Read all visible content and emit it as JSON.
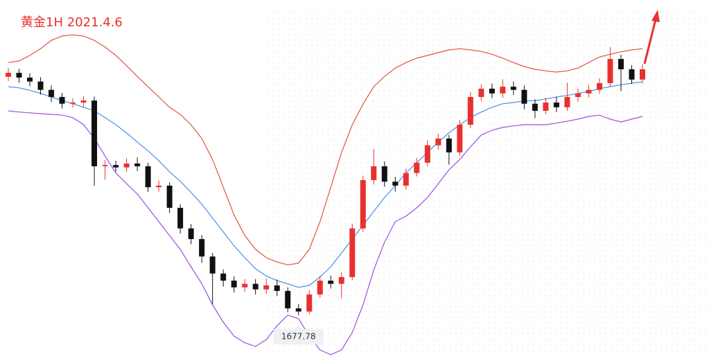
{
  "chart_data": {
    "type": "candlestick",
    "title": "黄金1H 2021.4.6",
    "ylim": [
      1666.2,
      1757.4
    ],
    "up_color": "#e8312f",
    "down_color": "#111111",
    "candles": {
      "open": [
        1738.0,
        1739.0,
        1737.8,
        1736.8,
        1734.7,
        1732.9,
        1731.2,
        1731.5,
        1732.0,
        1715.4,
        1715.7,
        1715.1,
        1716.1,
        1715.4,
        1710.1,
        1710.5,
        1704.9,
        1699.7,
        1697.0,
        1692.6,
        1688.3,
        1686.5,
        1684.8,
        1685.7,
        1684.3,
        1685.3,
        1683.9,
        1679.5,
        1678.7,
        1683.0,
        1686.5,
        1685.7,
        1687.4,
        1699.7,
        1711.9,
        1715.4,
        1711.5,
        1710.5,
        1713.7,
        1716.3,
        1720.7,
        1722.4,
        1718.9,
        1725.9,
        1732.9,
        1735.0,
        1733.8,
        1735.5,
        1734.7,
        1731.2,
        1729.4,
        1731.5,
        1730.3,
        1732.9,
        1733.8,
        1734.7,
        1736.4,
        1742.5,
        1739.9,
        1737.3
      ],
      "high": [
        1740.2,
        1740.0,
        1738.9,
        1737.9,
        1735.8,
        1733.9,
        1732.6,
        1733.1,
        1733.0,
        1717.0,
        1716.8,
        1717.4,
        1717.6,
        1716.3,
        1711.8,
        1711.3,
        1705.8,
        1700.8,
        1698.0,
        1693.5,
        1689.3,
        1687.6,
        1686.9,
        1686.9,
        1687.0,
        1686.8,
        1684.8,
        1680.6,
        1684.1,
        1687.7,
        1687.8,
        1688.6,
        1700.9,
        1713.0,
        1719.8,
        1716.6,
        1712.7,
        1714.8,
        1717.5,
        1722.0,
        1723.6,
        1723.3,
        1727.1,
        1734.2,
        1736.1,
        1736.3,
        1737.4,
        1736.8,
        1735.8,
        1732.3,
        1732.7,
        1732.9,
        1736.5,
        1735.0,
        1735.9,
        1737.6,
        1745.5,
        1743.6,
        1740.9,
        1741.2
      ],
      "low": [
        1736.9,
        1736.5,
        1735.6,
        1733.5,
        1731.6,
        1730.0,
        1730.2,
        1730.4,
        1710.5,
        1712.0,
        1714.0,
        1714.0,
        1714.2,
        1708.9,
        1709.0,
        1703.6,
        1698.4,
        1695.7,
        1691.0,
        1680.5,
        1685.0,
        1683.5,
        1683.7,
        1683.0,
        1683.2,
        1682.6,
        1678.5,
        1677.78,
        1678.0,
        1682.2,
        1684.5,
        1682.0,
        1686.6,
        1698.8,
        1710.8,
        1710.2,
        1709.0,
        1709.5,
        1712.8,
        1715.4,
        1719.6,
        1715.8,
        1718.0,
        1725.0,
        1731.8,
        1732.6,
        1732.7,
        1733.4,
        1729.8,
        1727.6,
        1728.5,
        1729.1,
        1729.4,
        1731.7,
        1732.8,
        1733.7,
        1735.6,
        1734.4,
        1736.2,
        1736.3
      ],
      "close": [
        1739.0,
        1737.8,
        1736.8,
        1734.7,
        1732.9,
        1731.2,
        1731.5,
        1732.0,
        1715.4,
        1715.7,
        1715.1,
        1716.1,
        1715.4,
        1710.1,
        1710.5,
        1704.9,
        1699.7,
        1697.0,
        1692.6,
        1688.3,
        1686.5,
        1684.8,
        1685.7,
        1684.3,
        1685.3,
        1683.9,
        1679.5,
        1678.7,
        1683.0,
        1686.5,
        1685.7,
        1687.4,
        1699.7,
        1711.9,
        1715.4,
        1711.5,
        1710.5,
        1713.7,
        1716.3,
        1720.7,
        1722.4,
        1718.9,
        1725.9,
        1732.9,
        1735.0,
        1733.8,
        1735.5,
        1734.7,
        1731.2,
        1729.4,
        1731.5,
        1730.3,
        1732.9,
        1733.8,
        1734.7,
        1736.4,
        1742.5,
        1739.9,
        1737.3,
        1739.9
      ]
    },
    "bands": [
      {
        "color": "#e0533c",
        "values": [
          1741.6,
          1742.0,
          1743.4,
          1745.1,
          1747.2,
          1748.3,
          1748.6,
          1748.3,
          1747.2,
          1745.5,
          1743.4,
          1740.8,
          1738.1,
          1735.5,
          1732.9,
          1730.3,
          1728.5,
          1725.9,
          1722.4,
          1717.1,
          1710.1,
          1703.1,
          1697.9,
          1694.4,
          1692.3,
          1691.2,
          1690.5,
          1690.9,
          1694.4,
          1701.4,
          1710.1,
          1718.9,
          1725.9,
          1731.1,
          1735.5,
          1738.1,
          1740.2,
          1741.6,
          1742.7,
          1743.4,
          1744.1,
          1744.8,
          1745.1,
          1744.8,
          1744.4,
          1743.7,
          1742.7,
          1741.6,
          1740.6,
          1739.9,
          1739.5,
          1739.2,
          1739.5,
          1740.2,
          1741.6,
          1743.0,
          1743.7,
          1744.3,
          1744.8,
          1745.1
        ]
      },
      {
        "color": "#4a8fe8",
        "values": [
          1735.5,
          1735.2,
          1734.6,
          1733.8,
          1732.9,
          1732.0,
          1731.2,
          1730.3,
          1729.4,
          1727.7,
          1725.9,
          1723.8,
          1721.5,
          1719.3,
          1716.8,
          1714.0,
          1711.6,
          1708.8,
          1705.8,
          1702.3,
          1698.8,
          1695.3,
          1692.3,
          1689.5,
          1687.7,
          1686.5,
          1685.7,
          1684.8,
          1685.3,
          1687.4,
          1690.0,
          1693.5,
          1697.0,
          1700.5,
          1704.0,
          1707.5,
          1710.5,
          1713.7,
          1716.3,
          1718.9,
          1721.5,
          1723.8,
          1725.9,
          1727.7,
          1729.1,
          1730.3,
          1731.2,
          1731.5,
          1731.9,
          1732.0,
          1732.4,
          1732.9,
          1733.3,
          1733.8,
          1734.3,
          1735.0,
          1735.5,
          1736.0,
          1736.4,
          1736.7
        ]
      },
      {
        "color": "#9b4fe0",
        "values": [
          1729.4,
          1729.1,
          1728.9,
          1728.7,
          1728.5,
          1728.3,
          1727.7,
          1725.9,
          1722.4,
          1718.0,
          1713.7,
          1711.0,
          1708.4,
          1704.9,
          1701.4,
          1697.9,
          1694.4,
          1690.0,
          1685.7,
          1680.4,
          1676.0,
          1672.5,
          1670.8,
          1669.9,
          1671.6,
          1675.1,
          1677.8,
          1676.9,
          1672.5,
          1669.0,
          1667.8,
          1669.0,
          1673.4,
          1680.4,
          1689.2,
          1696.2,
          1701.4,
          1702.8,
          1704.9,
          1707.5,
          1711.0,
          1714.5,
          1717.1,
          1720.3,
          1723.3,
          1724.5,
          1725.2,
          1725.6,
          1725.9,
          1725.9,
          1725.9,
          1726.3,
          1726.8,
          1727.3,
          1728.0,
          1728.3,
          1727.3,
          1726.6,
          1727.3,
          1728.0
        ]
      }
    ],
    "annotation": "1677.78"
  }
}
